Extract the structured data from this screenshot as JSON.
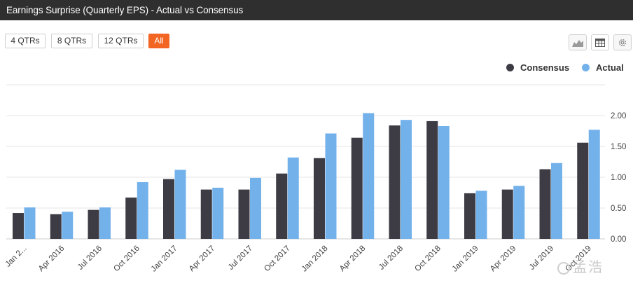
{
  "header": {
    "title": "Earnings Surprise (Quarterly EPS) - Actual vs Consensus"
  },
  "range_buttons": [
    {
      "label": "4 QTRs",
      "active": false
    },
    {
      "label": "8 QTRs",
      "active": false
    },
    {
      "label": "12 QTRs",
      "active": false
    },
    {
      "label": "All",
      "active": true
    }
  ],
  "toolbar": {
    "icons": [
      "area-chart-icon",
      "table-icon",
      "gear-icon"
    ]
  },
  "watermark": {
    "text": "孟浩"
  },
  "colors": {
    "consensus": "#3d3c44",
    "actual": "#73b1eb",
    "active_button": "#f26522",
    "title_bar": "#2f2f2f"
  },
  "chart_data": {
    "type": "bar",
    "title": "Earnings Surprise (Quarterly EPS) - Actual vs Consensus",
    "categories": [
      "Jan 2016",
      "Apr 2016",
      "Jul 2016",
      "Oct 2016",
      "Jan 2017",
      "Apr 2017",
      "Jul 2017",
      "Oct 2017",
      "Jan 2018",
      "Apr 2018",
      "Jul 2018",
      "Oct 2018",
      "Jan 2019",
      "Apr 2019",
      "Jul 2019",
      "Oct 2019"
    ],
    "category_labels": [
      "Jan 2...",
      "Apr 2016",
      "Jul 2016",
      "Oct 2016",
      "Jan 2017",
      "Apr 2017",
      "Jul 2017",
      "Oct 2017",
      "Jan 2018",
      "Apr 2018",
      "Jul 2018",
      "Oct 2018",
      "Jan 2019",
      "Apr 2019",
      "Jul 2019",
      "Oct 2019"
    ],
    "series": [
      {
        "name": "Consensus",
        "color": "#3d3c44",
        "values": [
          0.42,
          0.4,
          0.47,
          0.67,
          0.97,
          0.8,
          0.8,
          1.06,
          1.31,
          1.64,
          1.84,
          1.91,
          0.74,
          0.8,
          1.13,
          1.56
        ]
      },
      {
        "name": "Actual",
        "color": "#73b1eb",
        "values": [
          0.51,
          0.44,
          0.51,
          0.92,
          1.12,
          0.83,
          0.99,
          1.32,
          1.71,
          2.04,
          1.93,
          1.83,
          0.78,
          0.86,
          1.23,
          1.77
        ]
      }
    ],
    "ylim": [
      0,
      2.5
    ],
    "yticks": [
      "0.00",
      "0.50",
      "1.00",
      "1.50",
      "2.00"
    ],
    "ytick_values": [
      0,
      0.5,
      1.0,
      1.5,
      2.0
    ],
    "y_axis_side": "right",
    "grid": true,
    "legend_position": "top-right",
    "xlabel": "",
    "ylabel": ""
  }
}
